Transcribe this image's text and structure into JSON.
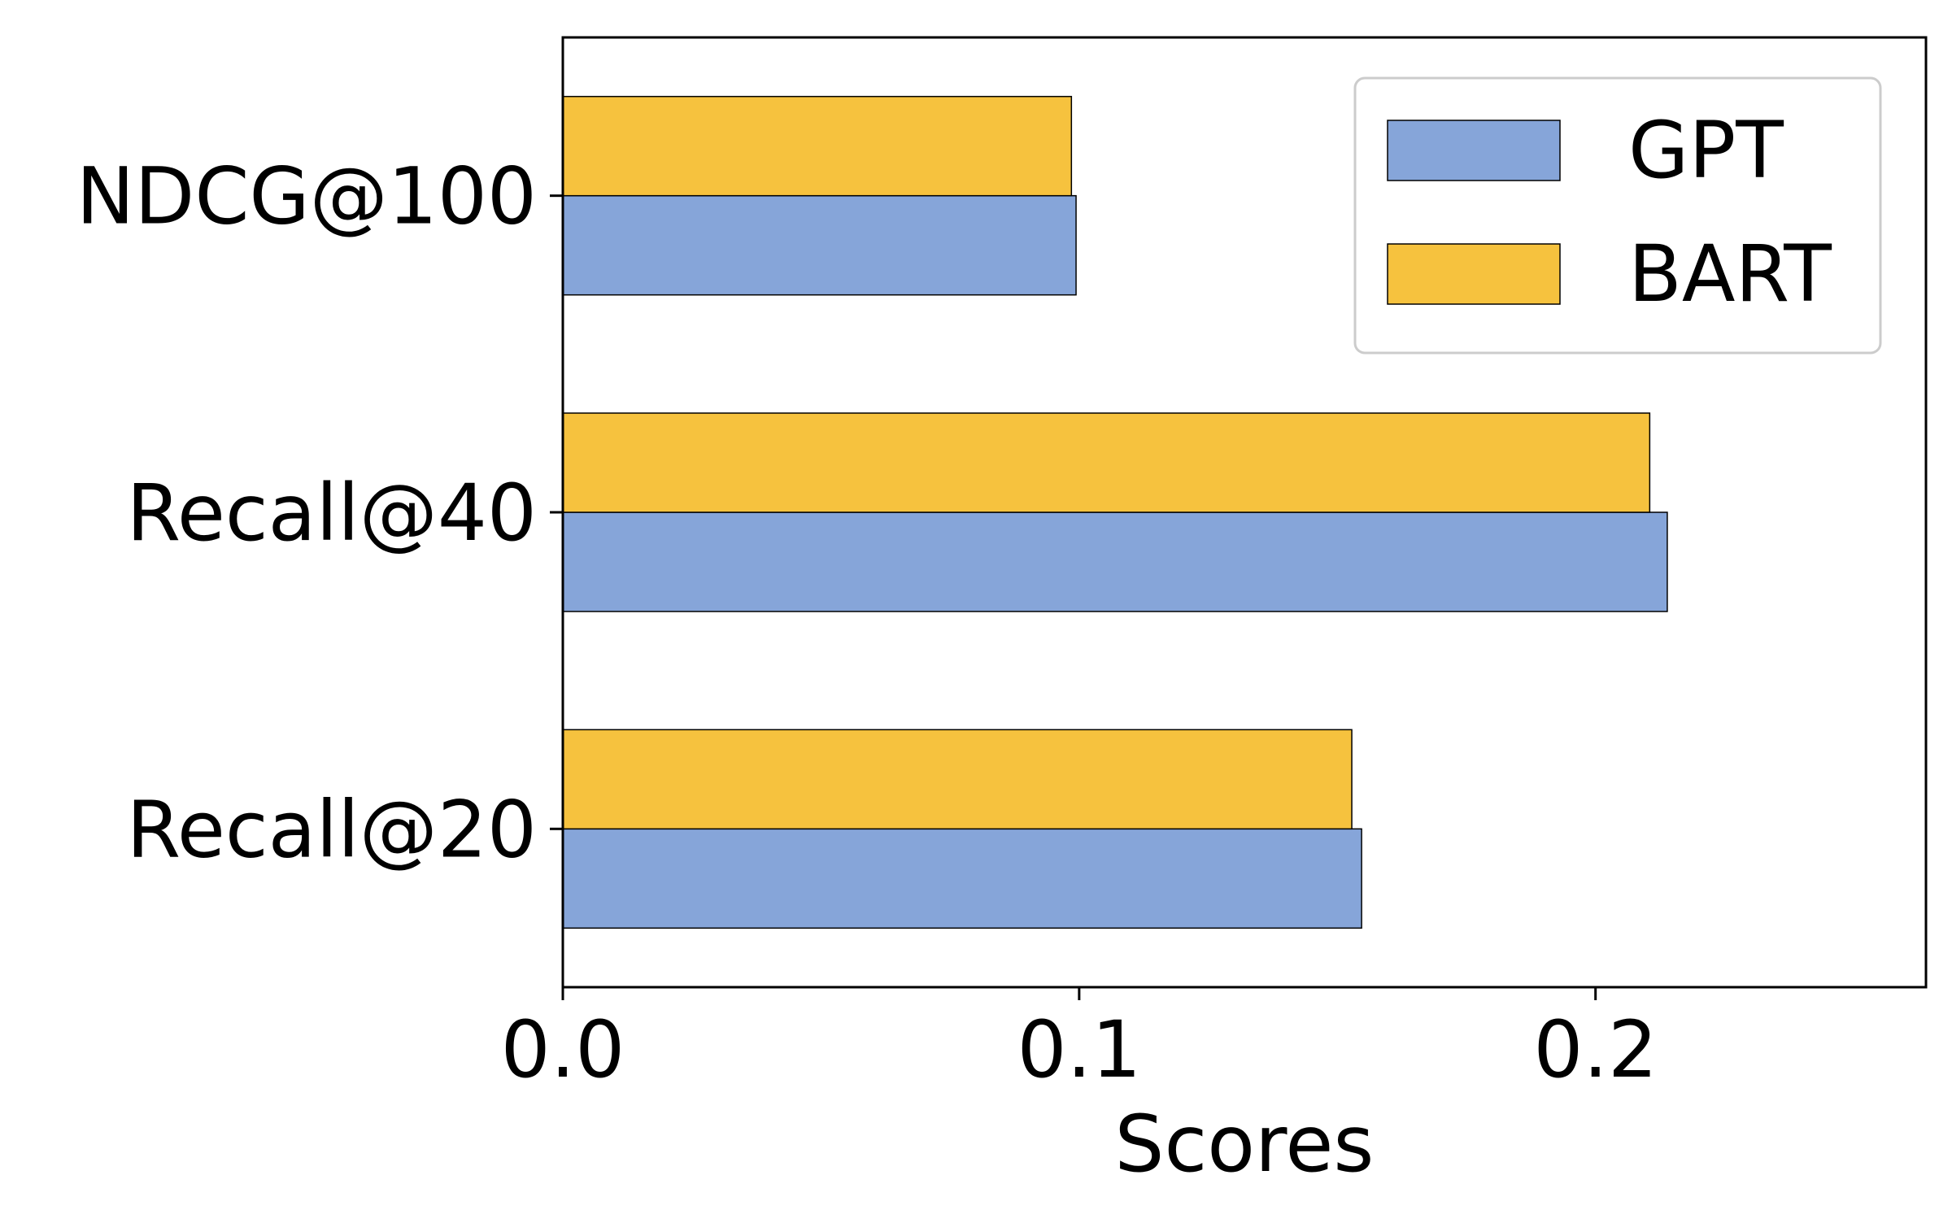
{
  "chart_data": {
    "type": "bar",
    "orientation": "horizontal",
    "categories": [
      "Recall@20",
      "Recall@40",
      "NDCG@100"
    ],
    "series": [
      {
        "name": "GPT",
        "values": [
          0.1547,
          0.2139,
          0.0994
        ]
      },
      {
        "name": "BART",
        "values": [
          0.1528,
          0.2105,
          0.0985
        ]
      }
    ],
    "colors": {
      "GPT": "#86a5d9",
      "BART": "#f6c23e"
    },
    "title": "",
    "xlabel": "Scores",
    "ylabel": "",
    "xlim": [
      0,
      0.264
    ],
    "xticks": [
      0.0,
      0.1,
      0.2
    ],
    "xtick_labels": [
      "0.0",
      "0.1",
      "0.2"
    ],
    "grid": false,
    "legend": {
      "position": "top-right"
    }
  }
}
